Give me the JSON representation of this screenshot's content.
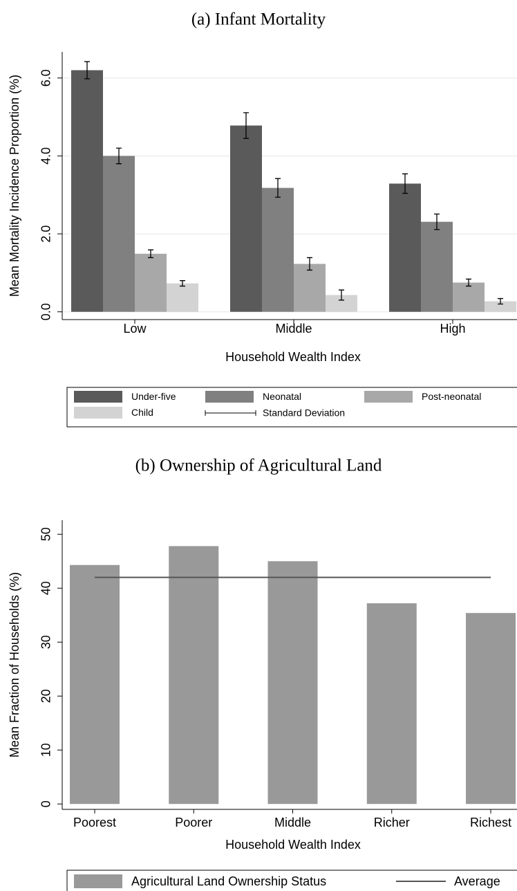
{
  "chart_data": [
    {
      "type": "bar",
      "title": "(a) Infant Mortality",
      "x_label": "Household Wealth Index",
      "y_label": "Mean Mortality Incidence Proportion (%)",
      "categories": [
        "Low",
        "Middle",
        "High"
      ],
      "series": [
        {
          "name": "Under-five",
          "color": "#5a5a5a",
          "values": [
            6.2,
            4.78,
            3.29
          ],
          "errors": [
            0.22,
            0.33,
            0.25
          ]
        },
        {
          "name": "Neonatal",
          "color": "#808080",
          "values": [
            4.0,
            3.18,
            2.31
          ],
          "errors": [
            0.2,
            0.24,
            0.2
          ]
        },
        {
          "name": "Post-neonatal",
          "color": "#a8a8a8",
          "values": [
            1.49,
            1.23,
            0.75
          ],
          "errors": [
            0.1,
            0.16,
            0.09
          ]
        },
        {
          "name": "Child",
          "color": "#d3d3d3",
          "values": [
            0.73,
            0.43,
            0.27
          ],
          "errors": [
            0.07,
            0.13,
            0.07
          ]
        }
      ],
      "error_bar_label": "Standard Deviation",
      "ylim": [
        -0.2,
        6.67
      ],
      "yticks": [
        {
          "value": 0,
          "label": "0.0"
        },
        {
          "value": 2,
          "label": "2.0"
        },
        {
          "value": 4,
          "label": "4.0"
        },
        {
          "value": 6,
          "label": "6.0"
        }
      ],
      "grid": true
    },
    {
      "type": "bar",
      "title": "(b) Ownership of Agricultural Land",
      "x_label": "Household Wealth Index",
      "y_label": "Mean Fraction of Households (%)",
      "categories": [
        "Poorest",
        "Poorer",
        "Middle",
        "Richer",
        "Richest"
      ],
      "series": [
        {
          "name": "Agricultural Land Ownership Status",
          "color": "#999999",
          "values": [
            44.3,
            47.8,
            45.0,
            37.2,
            35.4
          ]
        }
      ],
      "average_line": {
        "name": "Average",
        "value": 42.0,
        "color": "#555555"
      },
      "ylim": [
        -1,
        52.6
      ],
      "yticks": [
        0,
        10,
        20,
        30,
        40,
        50
      ],
      "grid": false
    }
  ]
}
